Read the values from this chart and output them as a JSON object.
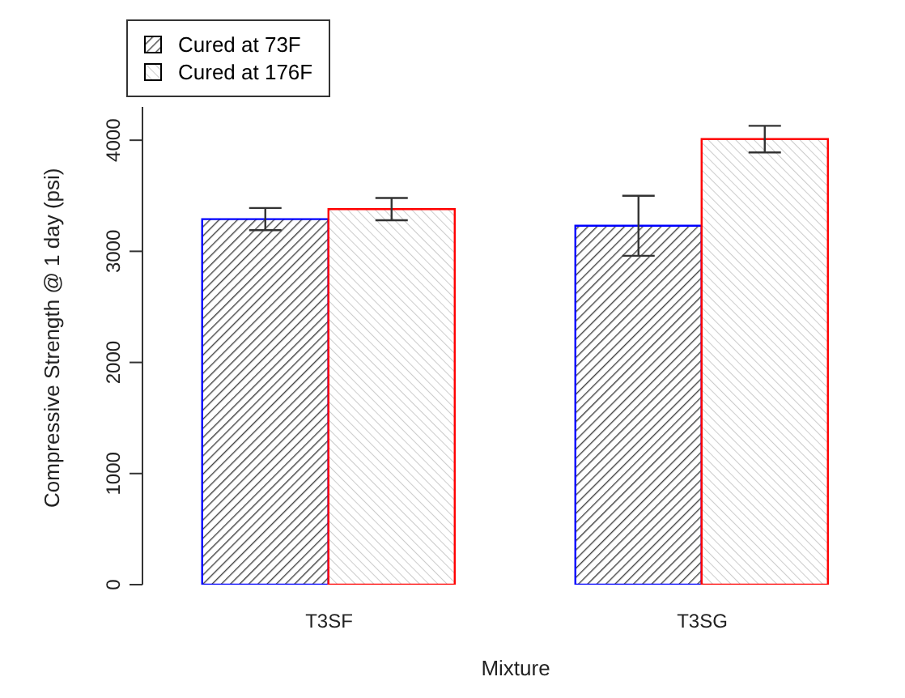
{
  "chart_data": {
    "type": "bar",
    "xlabel": "Mixture",
    "ylabel": "Compressive Strength @ 1 day (psi)",
    "categories": [
      "T3SF",
      "T3SG"
    ],
    "series": [
      {
        "name": "Cured at 73F",
        "color": "#0000ff",
        "values": [
          3290,
          3230
        ],
        "errors": [
          100,
          270
        ]
      },
      {
        "name": "Cured at 176F",
        "color": "#ff0000",
        "values": [
          3380,
          4010
        ],
        "errors": [
          100,
          120
        ]
      }
    ],
    "ylim": [
      0,
      4300
    ],
    "yticks": [
      0,
      1000,
      2000,
      3000,
      4000
    ],
    "grid": false,
    "legend": "top left"
  }
}
